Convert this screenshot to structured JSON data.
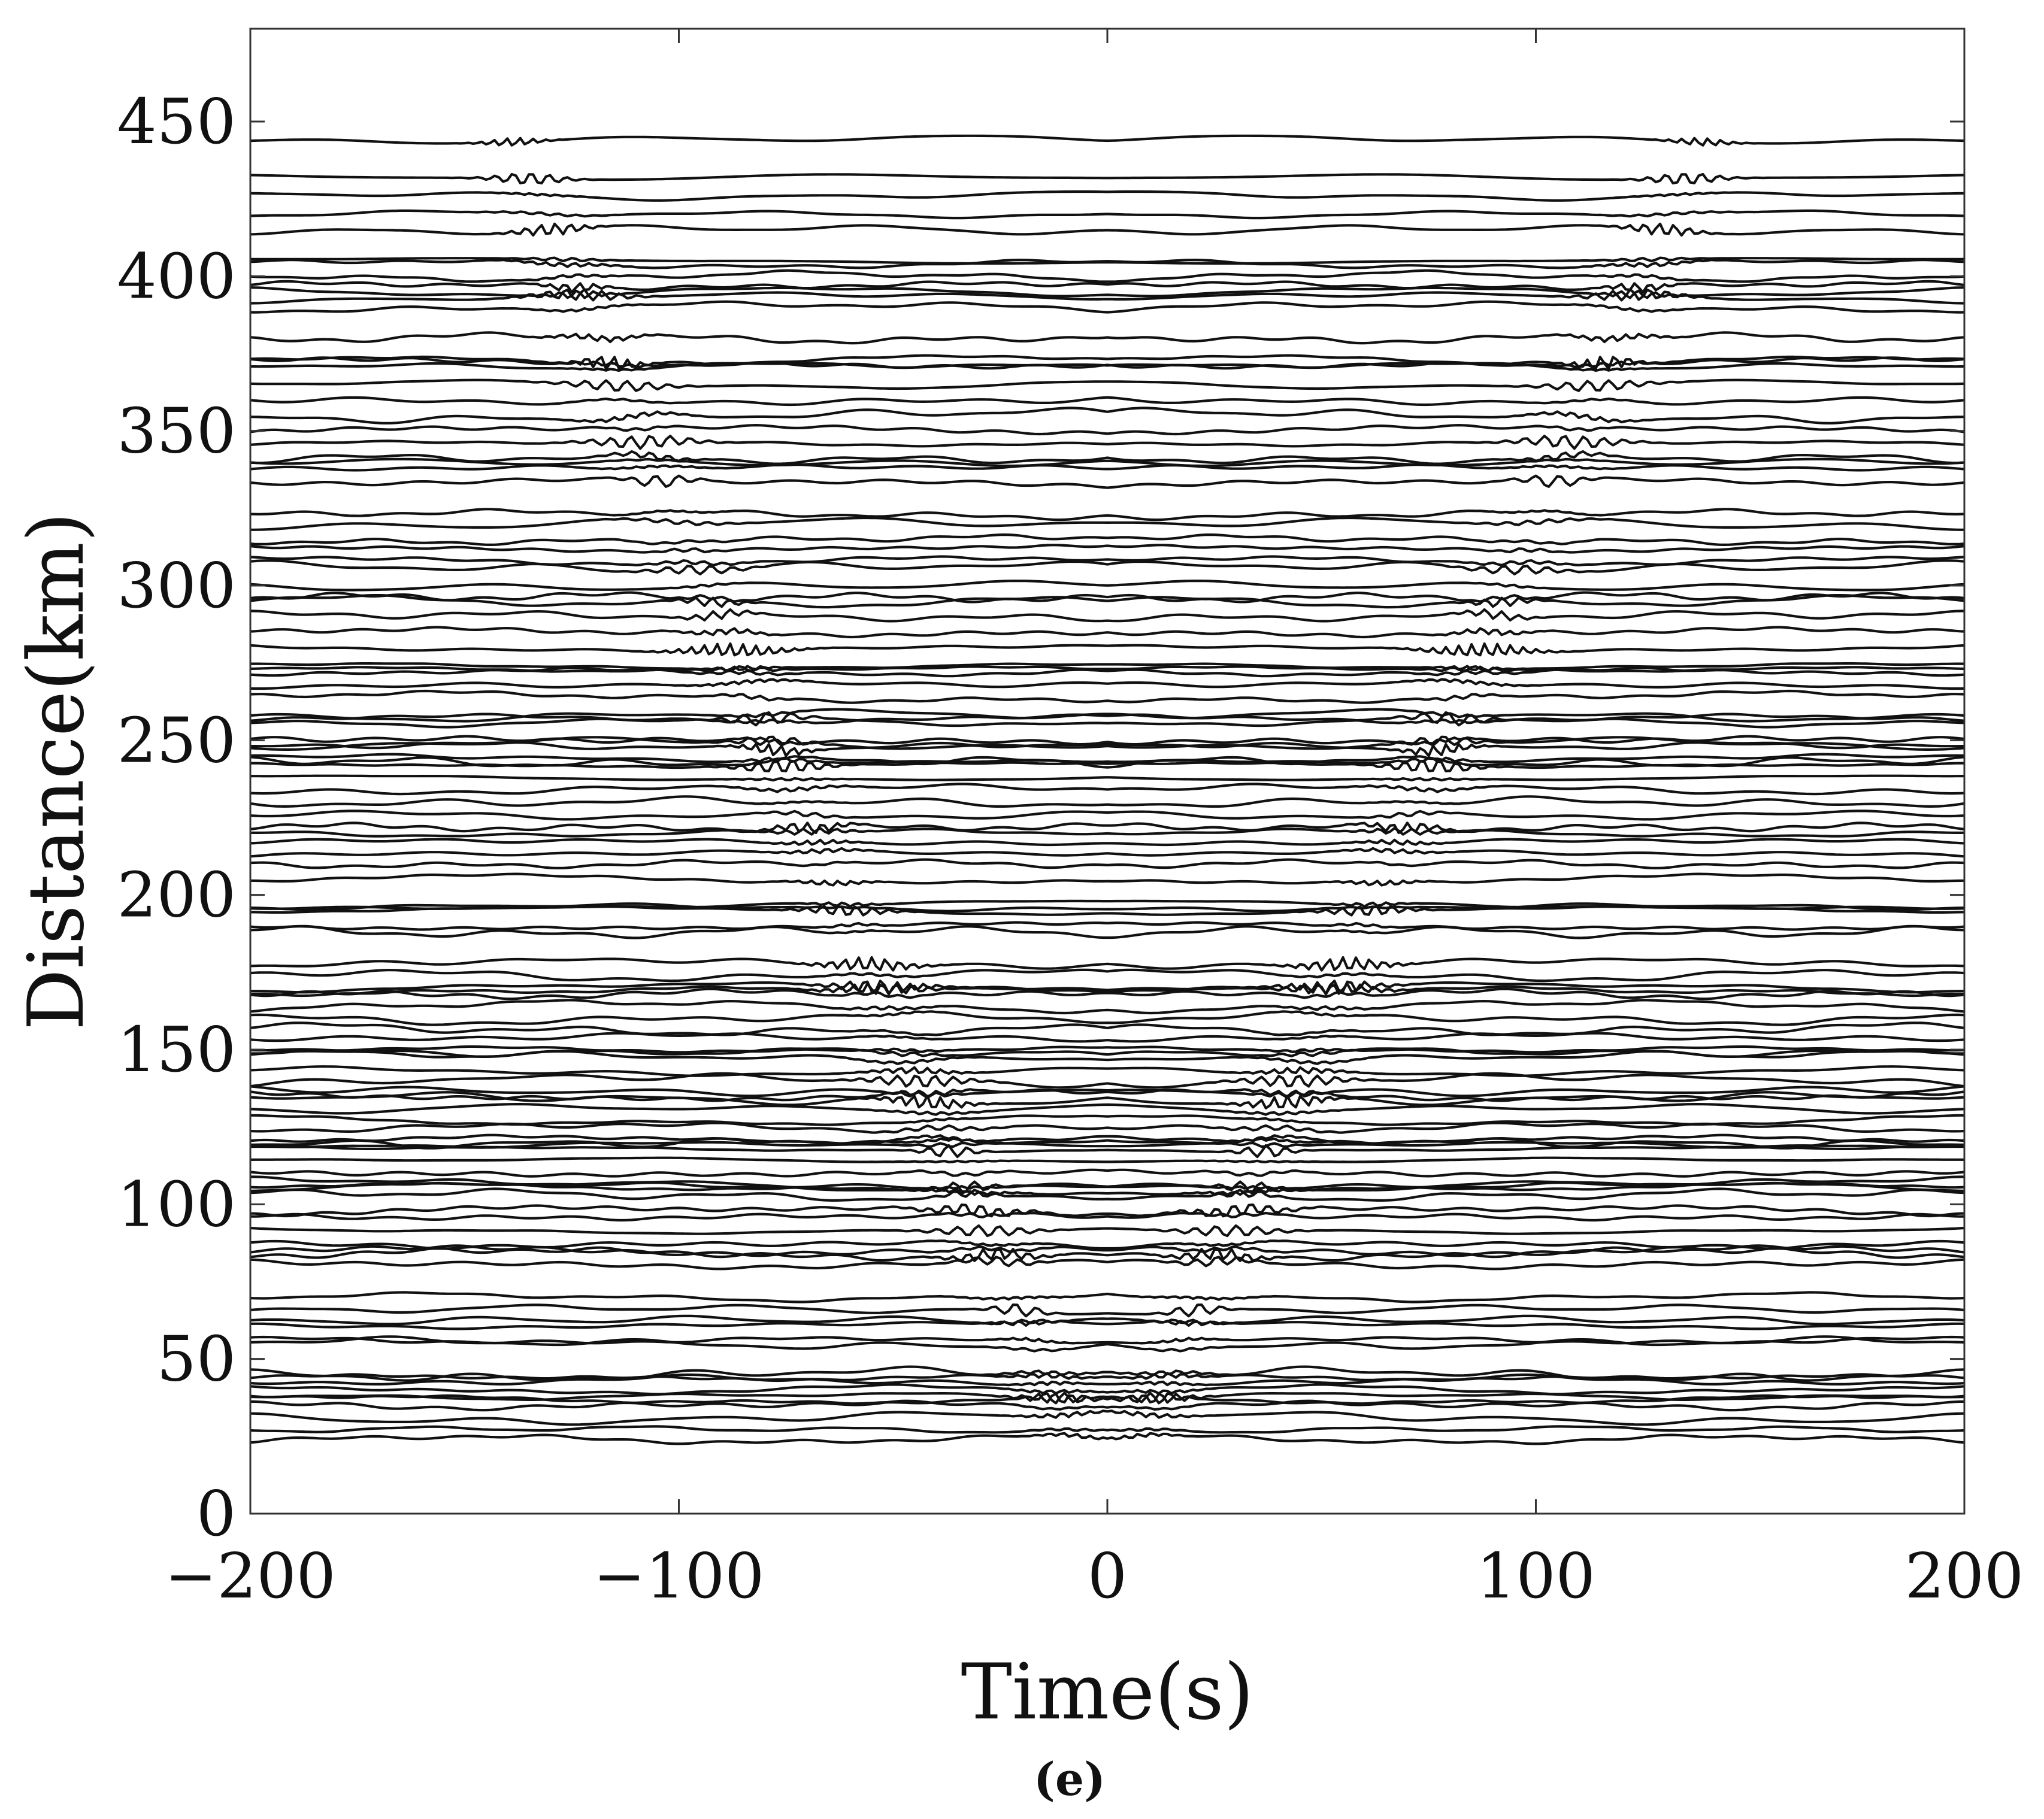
{
  "chart_data": {
    "type": "line",
    "title": "",
    "xlabel": "Time(s)",
    "ylabel": "Distance(km)",
    "panel_label": "(e)",
    "xlim": [
      -200,
      200
    ],
    "ylim": [
      0,
      480
    ],
    "xticks": [
      -200,
      -100,
      0,
      100,
      200
    ],
    "xtick_labels": [
      "−200",
      "−100",
      "0",
      "100",
      "200"
    ],
    "yticks": [
      0,
      50,
      100,
      150,
      200,
      250,
      300,
      350,
      400,
      450
    ],
    "ytick_labels": [
      "0",
      "50",
      "100",
      "150",
      "200",
      "250",
      "300",
      "350",
      "400",
      "450"
    ],
    "grid": false,
    "line_color": "#111111",
    "trace_distances_km": [
      24,
      27,
      31,
      35,
      37,
      38,
      40,
      43,
      44,
      45,
      55,
      56,
      61,
      62,
      66,
      70,
      81,
      84,
      85,
      87,
      92,
      96,
      98,
      103,
      105,
      106,
      107,
      110,
      114,
      118,
      119,
      120,
      121,
      125,
      127,
      131,
      134,
      135,
      137,
      140,
      143,
      148,
      149,
      150,
      154,
      157,
      160,
      164,
      168,
      169,
      170,
      174,
      178,
      188,
      190,
      195,
      196,
      197,
      205,
      210,
      213,
      217,
      220,
      222,
      226,
      230,
      234,
      238,
      242,
      243,
      244,
      248,
      249,
      250,
      256,
      257,
      258,
      264,
      268,
      272,
      273,
      274,
      280,
      285,
      290,
      295,
      296,
      300,
      306,
      308,
      312,
      315,
      320,
      323,
      333,
      338,
      340,
      341,
      346,
      350,
      355,
      360,
      365,
      371,
      372,
      373,
      380,
      390,
      393,
      395,
      397,
      400,
      404,
      405,
      415,
      420,
      426,
      432,
      444
    ]
  }
}
